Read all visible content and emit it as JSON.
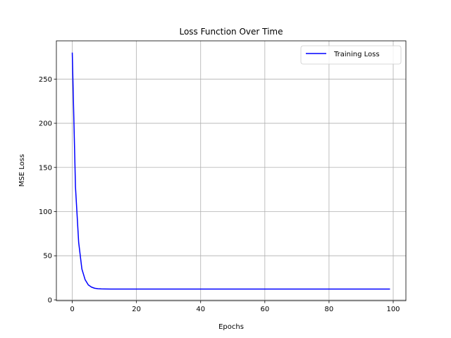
{
  "chart_data": {
    "type": "line",
    "title": "Loss Function Over Time",
    "xlabel": "Epochs",
    "ylabel": "MSE Loss",
    "xlim": [
      -4.95,
      103.95
    ],
    "ylim": [
      -0.85,
      293.3
    ],
    "xticks": [
      0,
      20,
      40,
      60,
      80,
      100
    ],
    "yticks": [
      0,
      50,
      100,
      150,
      200,
      250
    ],
    "grid": true,
    "legend_position": "top-right",
    "series": [
      {
        "name": "Training Loss",
        "color": "#0000ff",
        "x": [
          0,
          1,
          2,
          3,
          4,
          5,
          6,
          7,
          8,
          9,
          10,
          12,
          15,
          20,
          30,
          40,
          50,
          60,
          70,
          80,
          90,
          99
        ],
        "y": [
          280,
          128,
          65,
          35,
          23,
          17,
          14.5,
          13.2,
          12.7,
          12.5,
          12.4,
          12.35,
          12.3,
          12.3,
          12.3,
          12.3,
          12.3,
          12.3,
          12.3,
          12.3,
          12.3,
          12.3
        ]
      }
    ]
  }
}
